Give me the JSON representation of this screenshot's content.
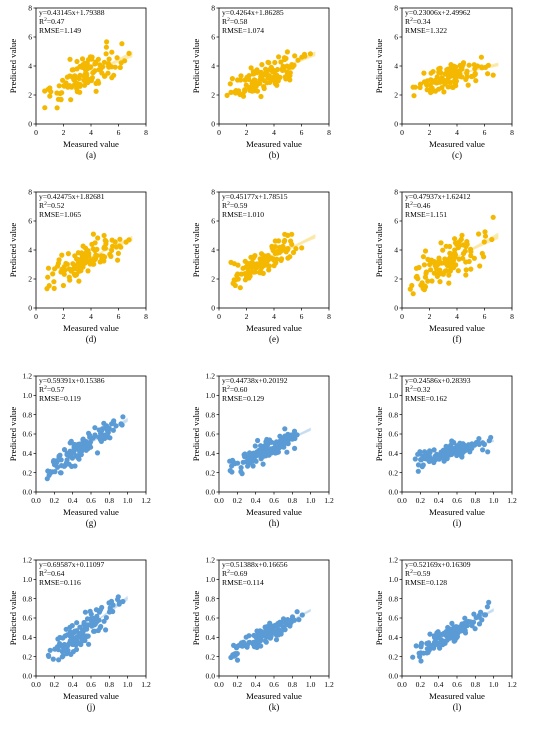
{
  "figure": {
    "colors": {
      "orange": "#f5b800",
      "blue": "#5b9bd5",
      "orange_band": "#fbe7a1",
      "blue_band": "#c4dcf2"
    },
    "xlabel": "Measured value",
    "ylabel": "Predicted value"
  },
  "chart_data": [
    {
      "type": "scatter",
      "label": "(a)",
      "equation": "y=0.43145x+1.79388",
      "r2_value": "0.47",
      "rmse_text": "RMSE=1.149",
      "slope": 0.43145,
      "intercept": 1.79388,
      "xlim": [
        0,
        8
      ],
      "ylim": [
        0,
        8
      ],
      "xticks": [
        "0",
        "2",
        "4",
        "6",
        "8"
      ],
      "yticks": [
        "0",
        "2",
        "4",
        "6",
        "8"
      ],
      "color": "orange",
      "seed": 11,
      "n": 120,
      "xrange": [
        0.5,
        7.0
      ],
      "noise": 0.95
    },
    {
      "type": "scatter",
      "label": "(b)",
      "equation": "y=0.4264x+1.86285",
      "r2_value": "0.58",
      "rmse_text": "RMSE=1.074",
      "slope": 0.4264,
      "intercept": 1.86285,
      "xlim": [
        0,
        8
      ],
      "ylim": [
        0,
        8
      ],
      "xticks": [
        "0",
        "2",
        "4",
        "6",
        "8"
      ],
      "yticks": [
        "0",
        "2",
        "4",
        "6",
        "8"
      ],
      "color": "orange",
      "seed": 23,
      "n": 120,
      "xrange": [
        0.5,
        7.0
      ],
      "noise": 0.75
    },
    {
      "type": "scatter",
      "label": "(c)",
      "equation": "y=0.23006x+2.49962",
      "r2_value": "0.34",
      "rmse_text": "RMSE=1.322",
      "slope": 0.23006,
      "intercept": 2.49962,
      "xlim": [
        0,
        8
      ],
      "ylim": [
        0,
        8
      ],
      "xticks": [
        "0",
        "2",
        "4",
        "6",
        "8"
      ],
      "yticks": [
        "0",
        "2",
        "4",
        "6",
        "8"
      ],
      "color": "orange",
      "seed": 37,
      "n": 120,
      "xrange": [
        0.5,
        7.0
      ],
      "noise": 0.6
    },
    {
      "type": "scatter",
      "label": "(d)",
      "equation": "y=0.42475x+1.82681",
      "r2_value": "0.52",
      "rmse_text": "RMSE=1.065",
      "slope": 0.42475,
      "intercept": 1.82681,
      "xlim": [
        0,
        8
      ],
      "ylim": [
        0,
        8
      ],
      "xticks": [
        "0",
        "2",
        "4",
        "6",
        "8"
      ],
      "yticks": [
        "0",
        "2",
        "4",
        "6",
        "8"
      ],
      "color": "orange",
      "seed": 41,
      "n": 120,
      "xrange": [
        0.5,
        7.0
      ],
      "noise": 0.85
    },
    {
      "type": "scatter",
      "label": "(e)",
      "equation": "y=0.45177x+1.78515",
      "r2_value": "0.59",
      "rmse_text": "RMSE=1.010",
      "slope": 0.45177,
      "intercept": 1.78515,
      "xlim": [
        0,
        8
      ],
      "ylim": [
        0,
        8
      ],
      "xticks": [
        "0",
        "2",
        "4",
        "6",
        "8"
      ],
      "yticks": [
        "0",
        "2",
        "4",
        "6",
        "8"
      ],
      "color": "orange",
      "seed": 53,
      "n": 120,
      "xrange": [
        0.5,
        7.0
      ],
      "noise": 0.7
    },
    {
      "type": "scatter",
      "label": "(f)",
      "equation": "y=0.47937x+1.62412",
      "r2_value": "0.46",
      "rmse_text": "RMSE=1.151",
      "slope": 0.47937,
      "intercept": 1.62412,
      "xlim": [
        0,
        8
      ],
      "ylim": [
        0,
        8
      ],
      "xticks": [
        "0",
        "2",
        "4",
        "6",
        "8"
      ],
      "yticks": [
        "0",
        "2",
        "4",
        "6",
        "8"
      ],
      "color": "orange",
      "seed": 67,
      "n": 120,
      "xrange": [
        0.5,
        7.0
      ],
      "noise": 1.0
    },
    {
      "type": "scatter",
      "label": "(g)",
      "equation": "y=0.59391x+0.15386",
      "r2_value": "0.57",
      "rmse_text": "RMSE=0.119",
      "slope": 0.59391,
      "intercept": 0.15386,
      "xlim": [
        0,
        1.2
      ],
      "ylim": [
        0,
        1.2
      ],
      "xticks": [
        "0.0",
        "0.2",
        "0.4",
        "0.6",
        "0.8",
        "1.0",
        "1.2"
      ],
      "yticks": [
        "0.0",
        "0.2",
        "0.4",
        "0.6",
        "0.8",
        "1.0",
        "1.2"
      ],
      "color": "blue",
      "seed": 71,
      "n": 120,
      "xrange": [
        0.1,
        1.0
      ],
      "noise": 0.1
    },
    {
      "type": "scatter",
      "label": "(h)",
      "equation": "y=0.44738x+0.20192",
      "r2_value": "0.60",
      "rmse_text": "RMSE=0.129",
      "slope": 0.44738,
      "intercept": 0.20192,
      "xlim": [
        0,
        1.2
      ],
      "ylim": [
        0,
        1.2
      ],
      "xticks": [
        "0.0",
        "0.2",
        "0.4",
        "0.6",
        "0.8",
        "1.0",
        "1.2"
      ],
      "yticks": [
        "0.0",
        "0.2",
        "0.4",
        "0.6",
        "0.8",
        "1.0",
        "1.2"
      ],
      "color": "blue",
      "seed": 83,
      "n": 120,
      "xrange": [
        0.1,
        1.0
      ],
      "noise": 0.08
    },
    {
      "type": "scatter",
      "label": "(i)",
      "equation": "y=0.24586x+0.28393",
      "r2_value": "0.32",
      "rmse_text": "RMSE=0.162",
      "slope": 0.24586,
      "intercept": 0.28393,
      "xlim": [
        0,
        1.2
      ],
      "ylim": [
        0,
        1.2
      ],
      "xticks": [
        "0.0",
        "0.2",
        "0.4",
        "0.6",
        "0.8",
        "1.0",
        "1.2"
      ],
      "yticks": [
        "0.0",
        "0.2",
        "0.4",
        "0.6",
        "0.8",
        "1.0",
        "1.2"
      ],
      "color": "blue",
      "seed": 97,
      "n": 120,
      "xrange": [
        0.1,
        1.0
      ],
      "noise": 0.06
    },
    {
      "type": "scatter",
      "label": "(j)",
      "equation": "y=0.69587x+0.11097",
      "r2_value": "0.64",
      "rmse_text": "RMSE=0.116",
      "slope": 0.69587,
      "intercept": 0.11097,
      "xlim": [
        0,
        1.2
      ],
      "ylim": [
        0,
        1.2
      ],
      "xticks": [
        "0.0",
        "0.2",
        "0.4",
        "0.6",
        "0.8",
        "1.0",
        "1.2"
      ],
      "yticks": [
        "0.0",
        "0.2",
        "0.4",
        "0.6",
        "0.8",
        "1.0",
        "1.2"
      ],
      "color": "blue",
      "seed": 101,
      "n": 120,
      "xrange": [
        0.1,
        1.0
      ],
      "noise": 0.11
    },
    {
      "type": "scatter",
      "label": "(k)",
      "equation": "y=0.51388x+0.16656",
      "r2_value": "0.69",
      "rmse_text": "RMSE=0.114",
      "slope": 0.51388,
      "intercept": 0.16656,
      "xlim": [
        0,
        1.2
      ],
      "ylim": [
        0,
        1.2
      ],
      "xticks": [
        "0.0",
        "0.2",
        "0.4",
        "0.6",
        "0.8",
        "1.0",
        "1.2"
      ],
      "yticks": [
        "0.0",
        "0.2",
        "0.4",
        "0.6",
        "0.8",
        "1.0",
        "1.2"
      ],
      "color": "blue",
      "seed": 113,
      "n": 120,
      "xrange": [
        0.1,
        1.0
      ],
      "noise": 0.07
    },
    {
      "type": "scatter",
      "label": "(l)",
      "equation": "y=0.52169x+0.16309",
      "r2_value": "0.59",
      "rmse_text": "RMSE=0.128",
      "slope": 0.52169,
      "intercept": 0.16309,
      "xlim": [
        0,
        1.2
      ],
      "ylim": [
        0,
        1.2
      ],
      "xticks": [
        "0.0",
        "0.2",
        "0.4",
        "0.6",
        "0.8",
        "1.0",
        "1.2"
      ],
      "yticks": [
        "0.0",
        "0.2",
        "0.4",
        "0.6",
        "0.8",
        "1.0",
        "1.2"
      ],
      "color": "blue",
      "seed": 127,
      "n": 120,
      "xrange": [
        0.1,
        1.0
      ],
      "noise": 0.08
    }
  ]
}
